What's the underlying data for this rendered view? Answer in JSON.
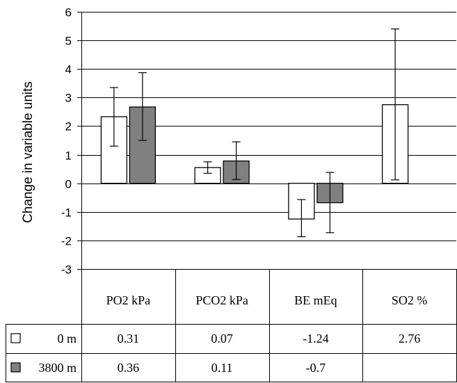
{
  "chart_data": {
    "type": "bar",
    "ylabel": "Change in variable units",
    "ylim": [
      -3,
      6
    ],
    "yticks": [
      -3,
      -2,
      -1,
      0,
      1,
      2,
      3,
      4,
      5,
      6
    ],
    "grid": true,
    "categories": [
      "PO2 kPa",
      "PCO2 kPa",
      "BE mEq",
      "SO2 %"
    ],
    "series": [
      {
        "name": "0 m",
        "color": "#ffffff",
        "values": [
          2.33,
          0.55,
          -1.25,
          2.75
        ],
        "err_low": [
          1.3,
          0.35,
          -1.87,
          0.12
        ],
        "err_high": [
          3.35,
          0.75,
          -0.57,
          5.4
        ],
        "table_values": [
          "0.31",
          "0.07",
          "-1.24",
          "2.76"
        ]
      },
      {
        "name": "3800 m",
        "color": "#808080",
        "values": [
          2.67,
          0.78,
          -0.68,
          null
        ],
        "err_low": [
          1.5,
          0.13,
          -1.73,
          null
        ],
        "err_high": [
          3.87,
          1.45,
          0.38,
          null
        ],
        "table_values": [
          "0.36",
          "0.11",
          "-0.7",
          ""
        ]
      }
    ]
  }
}
